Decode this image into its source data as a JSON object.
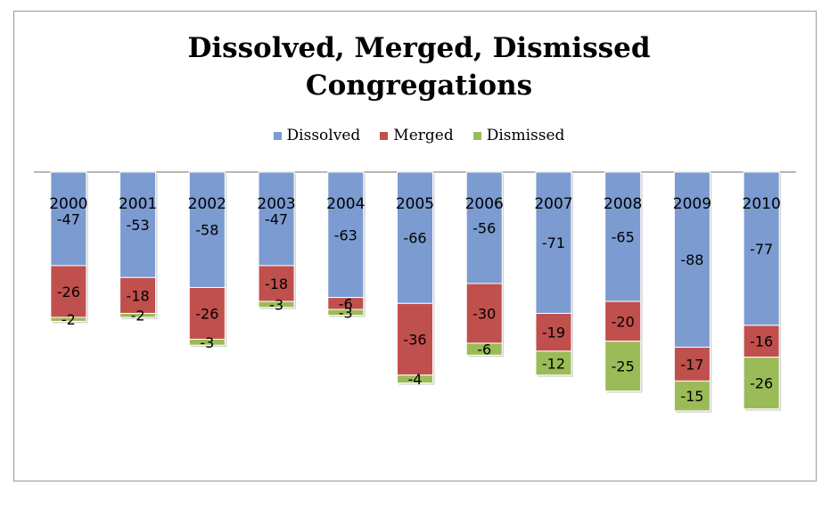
{
  "chart_data": {
    "type": "bar",
    "stacked": true,
    "title_lines": [
      "Dissolved, Merged, Dismissed",
      "Congregations"
    ],
    "xlabel": "",
    "ylabel": "",
    "categories": [
      "2000",
      "2001",
      "2002",
      "2003",
      "2004",
      "2005",
      "2006",
      "2007",
      "2008",
      "2009",
      "2010"
    ],
    "series": [
      {
        "name": "Dissolved",
        "color": "#7b9bd1",
        "values": [
          -47,
          -53,
          -58,
          -47,
          -63,
          -66,
          -56,
          -71,
          -65,
          -88,
          -77
        ]
      },
      {
        "name": "Merged",
        "color": "#c0504d",
        "values": [
          -26,
          -18,
          -26,
          -18,
          -6,
          -36,
          -30,
          -19,
          -20,
          -17,
          -16
        ]
      },
      {
        "name": "Dismissed",
        "color": "#9bbb59",
        "values": [
          -2,
          -2,
          -3,
          -3,
          -3,
          -4,
          -6,
          -12,
          -25,
          -15,
          -26
        ]
      }
    ],
    "ylim": [
      -125,
      0
    ],
    "grid": false,
    "legend_position": "top"
  }
}
